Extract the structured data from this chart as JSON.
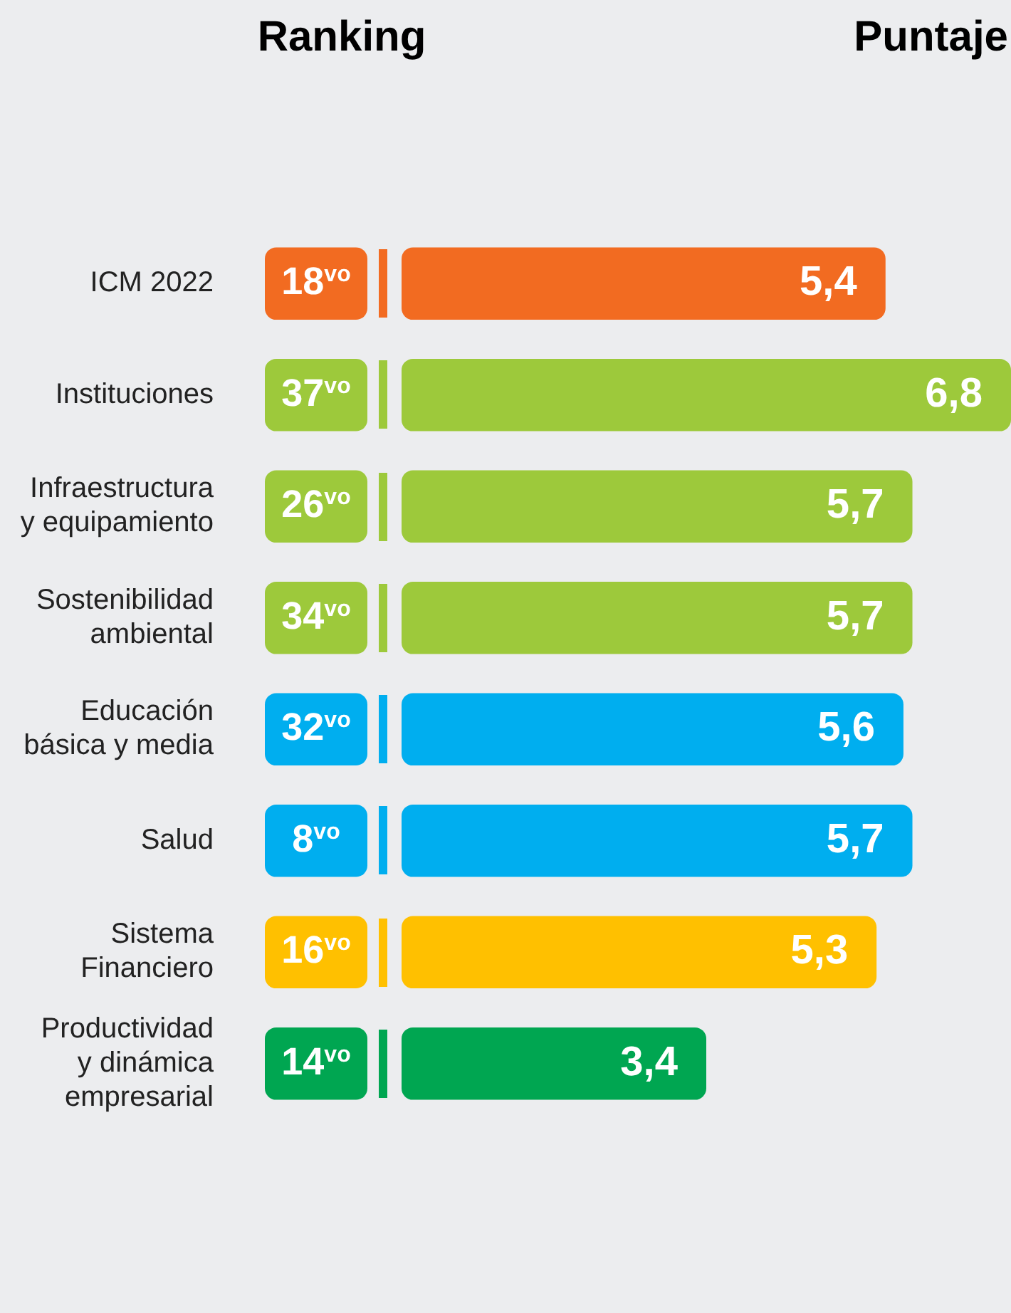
{
  "chart_data": {
    "type": "bar",
    "orientation": "horizontal",
    "categories": [
      "ICM 2022",
      "Instituciones",
      "Infraestructura y equipamiento",
      "Sostenibilidad ambiental",
      "Educación básica y media",
      "Salud",
      "Sistema Financiero",
      "Productividad y dinámica empresarial"
    ],
    "values": [
      5.4,
      6.8,
      5.7,
      5.7,
      5.6,
      5.7,
      5.3,
      3.4
    ],
    "value_labels": [
      "5,4",
      "6,8",
      "5,7",
      "5,7",
      "5,6",
      "5,7",
      "5,3",
      "3,4"
    ],
    "colors": [
      "#f26b21",
      "#9dc93b",
      "#9dc93b",
      "#9dc93b",
      "#00aeef",
      "#00aeef",
      "#ffc000",
      "#00a651"
    ],
    "annotations": [
      "Ranking",
      "Puntaje",
      "18$^{vo}$",
      "37$^{vo}$",
      "26$^{vo}$",
      "34$^{vo}$",
      "32$^{vo}$",
      "8$^{vo}$",
      "16$^{vo}$",
      "14$^{vo}$"
    ]
  }
}
